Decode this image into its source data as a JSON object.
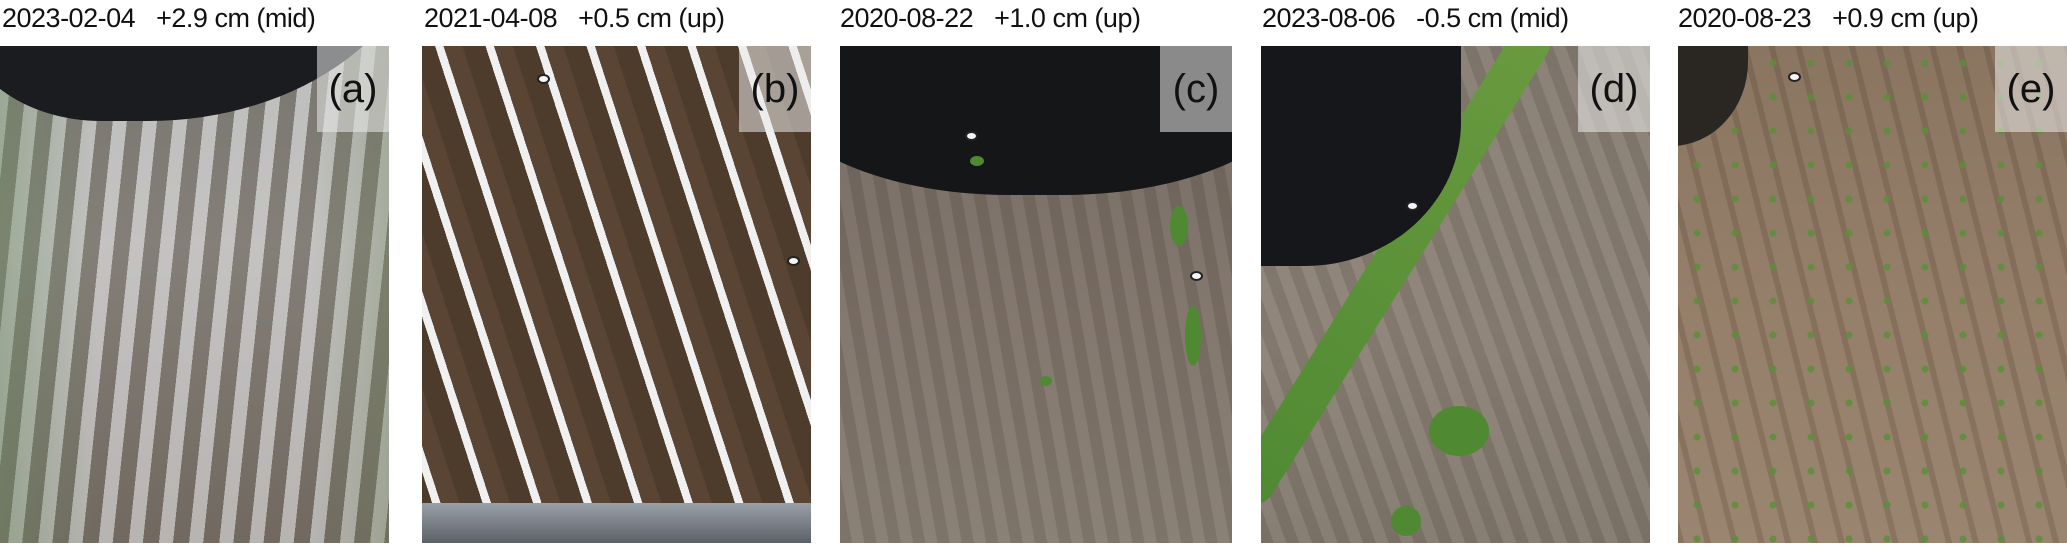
{
  "panels": [
    {
      "date": "2023-02-04",
      "offset": "+2.9 cm (mid)",
      "label": "(a)"
    },
    {
      "date": "2021-04-08",
      "offset": "+0.5 cm (up)",
      "label": "(b)"
    },
    {
      "date": "2020-08-22",
      "offset": "+1.0 cm (up)",
      "label": "(c)"
    },
    {
      "date": "2023-08-06",
      "offset": "-0.5 cm (mid)",
      "label": "(d)"
    },
    {
      "date": "2020-08-23",
      "offset": "+0.9 cm (up)",
      "label": "(e)"
    }
  ]
}
